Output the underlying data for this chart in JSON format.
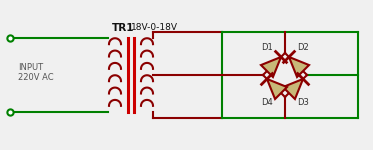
{
  "bg_color": "#f0f0f0",
  "line_color_green": "#008000",
  "line_color_red": "#8B0000",
  "diode_fill": "#c8b878",
  "diode_outline": "#8B0000",
  "label_color": "#333333",
  "title_label": "TR1",
  "secondary_label": "18V-0-18V",
  "input_label1": "INPUT",
  "input_label2": "220V AC",
  "d1": "D1",
  "d2": "D2",
  "d3": "D3",
  "d4": "D4",
  "figsize": [
    3.73,
    1.5
  ],
  "dpi": 100
}
